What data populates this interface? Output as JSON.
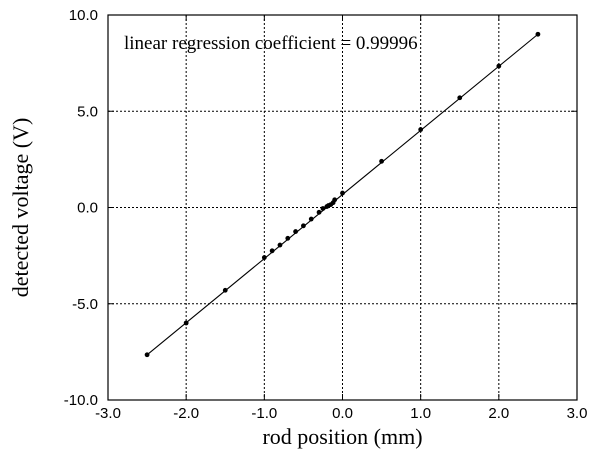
{
  "chart_data": {
    "type": "scatter",
    "title": "",
    "xlabel": "rod position (mm)",
    "ylabel": "detected voltage (V)",
    "annotation": "linear regression coefficient = 0.99996",
    "xlim": [
      -3.0,
      3.0
    ],
    "ylim": [
      -10.0,
      10.0
    ],
    "x_ticks": [
      -3.0,
      -2.0,
      -1.0,
      0.0,
      1.0,
      2.0,
      3.0
    ],
    "x_tick_labels": [
      "-3.0",
      "-2.0",
      "-1.0",
      "0.0",
      "1.0",
      "2.0",
      "3.0"
    ],
    "y_ticks": [
      -10.0,
      -5.0,
      0.0,
      5.0,
      10.0
    ],
    "y_tick_labels": [
      "-10.0",
      "-5.0",
      "0.0",
      "5.0",
      "10.0"
    ],
    "grid": true,
    "series": [
      {
        "x": [
          -2.5,
          -2.0,
          -1.5,
          -1.0,
          -0.9,
          -0.8,
          -0.7,
          -0.6,
          -0.5,
          -0.4,
          -0.3,
          -0.25,
          -0.2,
          -0.18,
          -0.15,
          -0.12,
          -0.1,
          0.0,
          0.5,
          1.0,
          1.5,
          2.0,
          2.5
        ],
        "y": [
          -7.65,
          -6.0,
          -4.3,
          -2.6,
          -2.25,
          -1.95,
          -1.6,
          -1.25,
          -0.95,
          -0.6,
          -0.25,
          -0.05,
          0.05,
          0.1,
          0.15,
          0.25,
          0.4,
          0.75,
          2.4,
          4.05,
          5.7,
          7.35,
          9.0
        ]
      }
    ],
    "fit_line": {
      "x": [
        -2.5,
        2.5
      ],
      "y": [
        -7.65,
        9.0
      ]
    }
  }
}
